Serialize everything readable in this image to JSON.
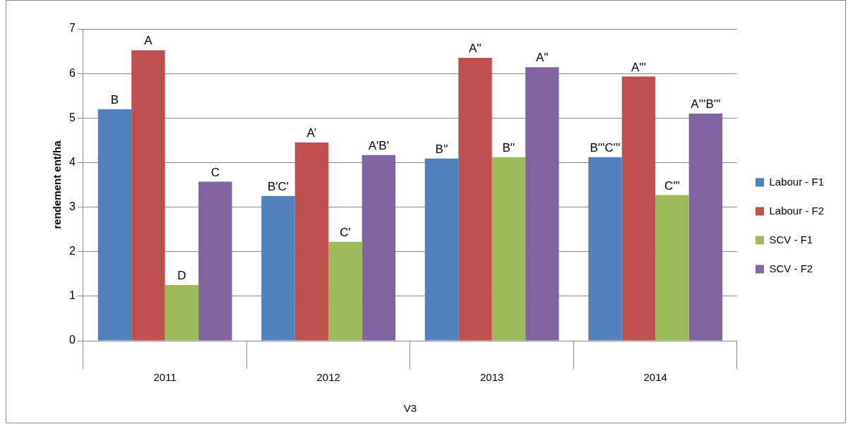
{
  "chart_data": {
    "type": "bar",
    "xlabel": "V3",
    "ylabel": "rendement ent/ha",
    "categories": [
      "2011",
      "2012",
      "2013",
      "2014"
    ],
    "series": [
      {
        "name": "Labour - F1",
        "color": "#4f81bd",
        "values": [
          5.2,
          3.25,
          4.09,
          4.12
        ],
        "value_labels": [
          "B",
          "B'C'",
          "B''",
          "B'''C'''"
        ]
      },
      {
        "name": "Labour - F2",
        "color": "#c0504d",
        "values": [
          6.52,
          4.45,
          6.35,
          5.93
        ],
        "value_labels": [
          "A",
          "A’",
          "A''",
          "A'''"
        ]
      },
      {
        "name": "SCV - F1",
        "color": "#9bbb59",
        "values": [
          1.25,
          2.22,
          4.12,
          3.27
        ],
        "value_labels": [
          "D",
          "C'",
          "B''",
          "C'''"
        ]
      },
      {
        "name": "SCV - F2",
        "color": "#8064a2",
        "values": [
          3.57,
          4.17,
          6.14,
          5.1
        ],
        "value_labels": [
          "C",
          "A'B'",
          "A''",
          "A'''B'''"
        ]
      }
    ],
    "ylim": [
      0,
      7
    ],
    "yticks": [
      0,
      1,
      2,
      3,
      4,
      5,
      6,
      7
    ],
    "grid": "y",
    "legend": "right"
  }
}
